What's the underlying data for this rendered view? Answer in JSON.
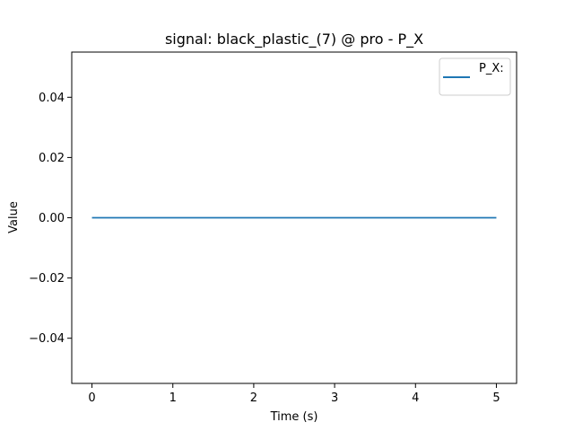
{
  "chart_data": {
    "type": "line",
    "title": "signal: black_plastic_(7) @ pro - P_X",
    "xlabel": "Time (s)",
    "ylabel": "Value",
    "xlim": [
      -0.25,
      5.25
    ],
    "ylim": [
      -0.055,
      0.055
    ],
    "x_ticks": [
      0,
      1,
      2,
      3,
      4,
      5
    ],
    "x_tick_labels": [
      "0",
      "1",
      "2",
      "3",
      "4",
      "5"
    ],
    "y_ticks": [
      0.04,
      0.02,
      0.0,
      -0.02,
      -0.04
    ],
    "y_tick_labels": [
      "0.04",
      "0.02",
      "0.00",
      "−0.02",
      "−0.04"
    ],
    "grid": false,
    "legend_position": "top-right",
    "series": [
      {
        "name": "P_X:",
        "color": "#1f77b4",
        "x": [
          0,
          5
        ],
        "y": [
          0,
          0
        ]
      }
    ]
  }
}
